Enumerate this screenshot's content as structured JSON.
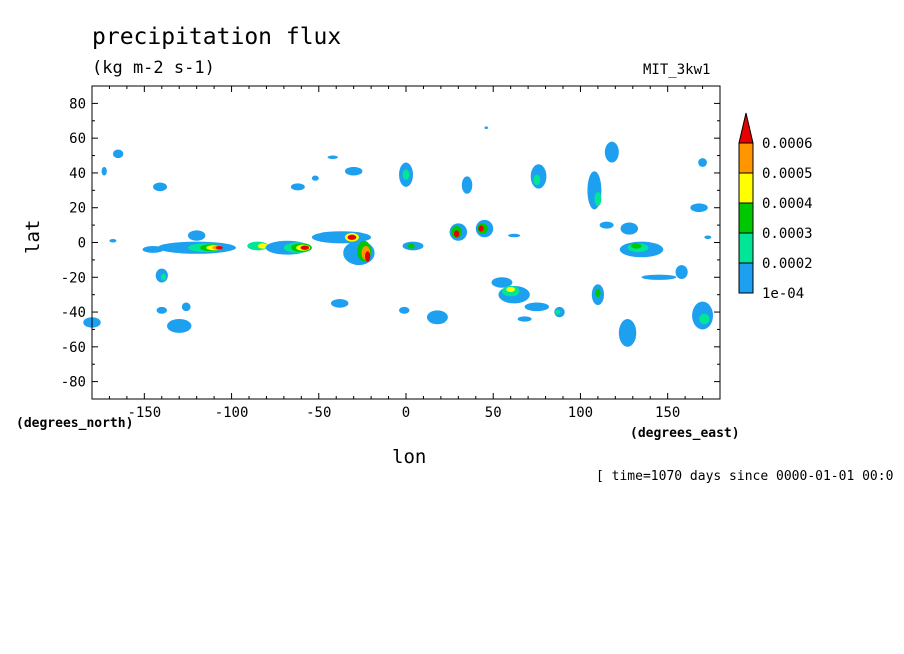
{
  "chart_data": {
    "type": "heatmap",
    "title": "precipitation flux",
    "units": "(kg m-2 s-1)",
    "dataset": "MIT_3kw1",
    "time_note": "[ time=1070 days since 0000-01-01 00:0",
    "xlabel": "lon",
    "ylabel": "lat",
    "x_unit": "(degrees_east)",
    "y_unit": "(degrees_north)",
    "xlim": [
      -180,
      180
    ],
    "ylim": [
      -90,
      90
    ],
    "xticks": [
      -150,
      -100,
      -50,
      0,
      50,
      100,
      150
    ],
    "yticks": [
      -80,
      -60,
      -40,
      -20,
      0,
      20,
      40,
      60,
      80
    ],
    "colorbar": {
      "levels": [
        0.0001,
        0.0002,
        0.0003,
        0.0004,
        0.0005,
        0.0006
      ],
      "labels": [
        "1e-04",
        "0.0002",
        "0.0003",
        "0.0004",
        "0.0005",
        "0.0006"
      ],
      "colors": [
        "#1ea0f0",
        "#00e696",
        "#00c800",
        "#ffff00",
        "#ff9600",
        "#e60000"
      ]
    },
    "cells": [
      {
        "lon": -180,
        "lat": -46,
        "w": 10,
        "h": 6,
        "v": 0.0001
      },
      {
        "lon": -165,
        "lat": 51,
        "w": 6,
        "h": 5,
        "v": 0.0001
      },
      {
        "lon": -173,
        "lat": 41,
        "w": 3,
        "h": 5,
        "v": 0.0001
      },
      {
        "lon": -141,
        "lat": 32,
        "w": 8,
        "h": 5,
        "v": 0.0001
      },
      {
        "lon": -145,
        "lat": -4,
        "w": 12,
        "h": 4,
        "v": 0.0001
      },
      {
        "lon": -140,
        "lat": -19,
        "w": 7,
        "h": 8,
        "v": 0.0001
      },
      {
        "lon": -139,
        "lat": -20,
        "w": 3,
        "h": 4,
        "v": 0.0002
      },
      {
        "lon": -140,
        "lat": -39,
        "w": 6,
        "h": 4,
        "v": 0.0001
      },
      {
        "lon": -126,
        "lat": -37,
        "w": 5,
        "h": 5,
        "v": 0.0001
      },
      {
        "lon": -130,
        "lat": -48,
        "w": 14,
        "h": 8,
        "v": 0.0001
      },
      {
        "lon": -120,
        "lat": 4,
        "w": 10,
        "h": 6,
        "v": 0.0001
      },
      {
        "lon": -120,
        "lat": -3,
        "w": 45,
        "h": 7,
        "v": 0.0001
      },
      {
        "lon": -115,
        "lat": -3,
        "w": 20,
        "h": 5,
        "v": 0.0002
      },
      {
        "lon": -112,
        "lat": -3,
        "w": 12,
        "h": 4,
        "v": 0.0003
      },
      {
        "lon": -110,
        "lat": -3,
        "w": 9,
        "h": 3,
        "v": 0.0004
      },
      {
        "lon": -108,
        "lat": -3,
        "w": 6,
        "h": 2.5,
        "v": 0.0005
      },
      {
        "lon": -107,
        "lat": -3,
        "w": 4,
        "h": 2,
        "v": 0.0006
      },
      {
        "lon": -85,
        "lat": -2,
        "w": 12,
        "h": 5,
        "v": 0.0002
      },
      {
        "lon": -82,
        "lat": -2,
        "w": 6,
        "h": 3,
        "v": 0.0004
      },
      {
        "lon": -68,
        "lat": -3,
        "w": 25,
        "h": 8,
        "v": 0.0001
      },
      {
        "lon": -62,
        "lat": -3,
        "w": 16,
        "h": 6,
        "v": 0.0002
      },
      {
        "lon": -60,
        "lat": -3,
        "w": 12,
        "h": 5,
        "v": 0.0003
      },
      {
        "lon": -59,
        "lat": -3,
        "w": 8,
        "h": 3.5,
        "v": 0.0004
      },
      {
        "lon": -58,
        "lat": -3,
        "w": 5,
        "h": 2.5,
        "v": 0.0006
      },
      {
        "lon": -37,
        "lat": 3,
        "w": 34,
        "h": 7,
        "v": 0.0001
      },
      {
        "lon": -27,
        "lat": -6,
        "w": 18,
        "h": 14,
        "v": 0.0001
      },
      {
        "lon": -31,
        "lat": 3,
        "w": 8,
        "h": 5,
        "v": 0.0004
      },
      {
        "lon": -31,
        "lat": 3,
        "w": 5,
        "h": 3,
        "v": 0.0006
      },
      {
        "lon": -24,
        "lat": -5,
        "w": 8,
        "h": 12,
        "v": 0.0003
      },
      {
        "lon": -23,
        "lat": -6,
        "w": 5,
        "h": 8,
        "v": 0.0005
      },
      {
        "lon": -22,
        "lat": -8,
        "w": 3,
        "h": 6,
        "v": 0.0006
      },
      {
        "lon": -62,
        "lat": 32,
        "w": 8,
        "h": 4,
        "v": 0.0001
      },
      {
        "lon": -52,
        "lat": 37,
        "w": 4,
        "h": 3,
        "v": 0.0001
      },
      {
        "lon": -42,
        "lat": 49,
        "w": 6,
        "h": 2,
        "v": 0.0001
      },
      {
        "lon": -30,
        "lat": 41,
        "w": 10,
        "h": 5,
        "v": 0.0001
      },
      {
        "lon": -38,
        "lat": -35,
        "w": 10,
        "h": 5,
        "v": 0.0001
      },
      {
        "lon": 0,
        "lat": 39,
        "w": 8,
        "h": 14,
        "v": 0.0001
      },
      {
        "lon": 0,
        "lat": 39,
        "w": 4,
        "h": 6,
        "v": 0.0002
      },
      {
        "lon": 4,
        "lat": -2,
        "w": 12,
        "h": 5,
        "v": 0.0001
      },
      {
        "lon": 3,
        "lat": -2,
        "w": 4,
        "h": 3,
        "v": 0.0003
      },
      {
        "lon": -1,
        "lat": -39,
        "w": 6,
        "h": 4,
        "v": 0.0001
      },
      {
        "lon": 18,
        "lat": -43,
        "w": 12,
        "h": 8,
        "v": 0.0001
      },
      {
        "lon": 30,
        "lat": 6,
        "w": 10,
        "h": 10,
        "v": 0.0001
      },
      {
        "lon": 29,
        "lat": 6,
        "w": 6,
        "h": 7,
        "v": 0.0003
      },
      {
        "lon": 29,
        "lat": 5,
        "w": 3,
        "h": 4,
        "v": 0.0006
      },
      {
        "lon": 45,
        "lat": 8,
        "w": 10,
        "h": 10,
        "v": 0.0001
      },
      {
        "lon": 44,
        "lat": 8,
        "w": 6,
        "h": 6,
        "v": 0.0003
      },
      {
        "lon": 43,
        "lat": 8,
        "w": 3,
        "h": 3.5,
        "v": 0.0006
      },
      {
        "lon": 62,
        "lat": 4,
        "w": 7,
        "h": 2,
        "v": 0.0001
      },
      {
        "lon": 35,
        "lat": 33,
        "w": 6,
        "h": 10,
        "v": 0.0001
      },
      {
        "lon": 55,
        "lat": -23,
        "w": 12,
        "h": 6,
        "v": 0.0001
      },
      {
        "lon": 62,
        "lat": -30,
        "w": 18,
        "h": 10,
        "v": 0.0001
      },
      {
        "lon": 60,
        "lat": -28,
        "w": 10,
        "h": 6,
        "v": 0.0002
      },
      {
        "lon": 60,
        "lat": -27,
        "w": 5,
        "h": 3,
        "v": 0.0004
      },
      {
        "lon": 75,
        "lat": -37,
        "w": 14,
        "h": 5,
        "v": 0.0001
      },
      {
        "lon": 88,
        "lat": -40,
        "w": 6,
        "h": 6,
        "v": 0.0001
      },
      {
        "lon": 87,
        "lat": -40,
        "w": 3,
        "h": 3,
        "v": 0.0002
      },
      {
        "lon": 68,
        "lat": -44,
        "w": 8,
        "h": 3,
        "v": 0.0001
      },
      {
        "lon": 76,
        "lat": 38,
        "w": 9,
        "h": 14,
        "v": 0.0001
      },
      {
        "lon": 75,
        "lat": 36,
        "w": 4,
        "h": 6,
        "v": 0.0002
      },
      {
        "lon": 108,
        "lat": 30,
        "w": 8,
        "h": 22,
        "v": 0.0001
      },
      {
        "lon": 110,
        "lat": 25,
        "w": 4,
        "h": 8,
        "v": 0.0002
      },
      {
        "lon": 118,
        "lat": 52,
        "w": 8,
        "h": 12,
        "v": 0.0001
      },
      {
        "lon": 115,
        "lat": 10,
        "w": 8,
        "h": 4,
        "v": 0.0001
      },
      {
        "lon": 128,
        "lat": 8,
        "w": 10,
        "h": 7,
        "v": 0.0001
      },
      {
        "lon": 135,
        "lat": -4,
        "w": 25,
        "h": 9,
        "v": 0.0001
      },
      {
        "lon": 133,
        "lat": -3,
        "w": 12,
        "h": 5,
        "v": 0.0002
      },
      {
        "lon": 132,
        "lat": -2,
        "w": 6,
        "h": 3,
        "v": 0.0003
      },
      {
        "lon": 110,
        "lat": -30,
        "w": 7,
        "h": 12,
        "v": 0.0001
      },
      {
        "lon": 110,
        "lat": -29,
        "w": 3,
        "h": 5,
        "v": 0.0003
      },
      {
        "lon": 127,
        "lat": -52,
        "w": 10,
        "h": 16,
        "v": 0.0001
      },
      {
        "lon": 145,
        "lat": -20,
        "w": 20,
        "h": 3,
        "v": 0.0001
      },
      {
        "lon": 158,
        "lat": -17,
        "w": 7,
        "h": 8,
        "v": 0.0001
      },
      {
        "lon": 168,
        "lat": 20,
        "w": 10,
        "h": 5,
        "v": 0.0001
      },
      {
        "lon": 170,
        "lat": 46,
        "w": 5,
        "h": 5,
        "v": 0.0001
      },
      {
        "lon": 173,
        "lat": 3,
        "w": 4,
        "h": 2,
        "v": 0.0001
      },
      {
        "lon": 170,
        "lat": -42,
        "w": 12,
        "h": 16,
        "v": 0.0001
      },
      {
        "lon": 171,
        "lat": -44,
        "w": 6,
        "h": 6,
        "v": 0.0002
      },
      {
        "lon": -168,
        "lat": 1,
        "w": 4,
        "h": 2,
        "v": 0.0001
      },
      {
        "lon": 46,
        "lat": 66,
        "w": 2,
        "h": 1.5,
        "v": 0.0001
      }
    ]
  }
}
